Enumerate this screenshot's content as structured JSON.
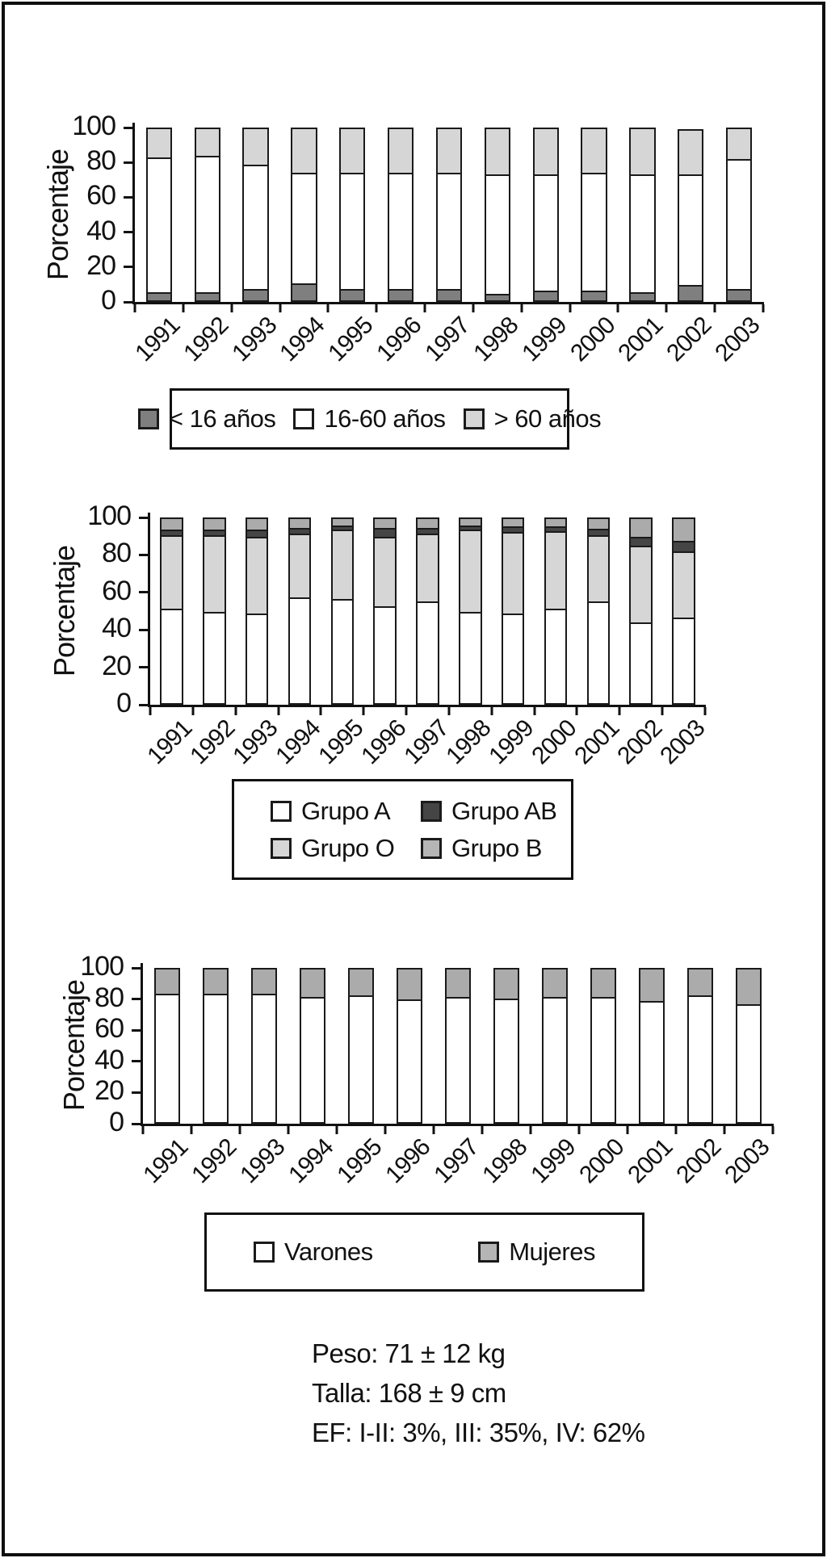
{
  "chart_data": [
    {
      "type": "bar",
      "stacked": true,
      "ylabel": "Porcentaje",
      "ylim": [
        0,
        100
      ],
      "yticks": [
        0,
        20,
        40,
        60,
        80,
        100
      ],
      "categories": [
        "1991",
        "1992",
        "1993",
        "1994",
        "1995",
        "1996",
        "1997",
        "1998",
        "1999",
        "2000",
        "2001",
        "2002",
        "2003"
      ],
      "series": [
        {
          "name": "< 16 años",
          "color": "#7f7f7f",
          "values": [
            4,
            4,
            6,
            9,
            6,
            6,
            6,
            3,
            5,
            5,
            4,
            8,
            6
          ]
        },
        {
          "name": "16-60 años",
          "color": "#ffffff",
          "values": [
            79,
            80,
            73,
            65,
            68,
            68,
            68,
            70,
            68,
            69,
            69,
            65,
            76
          ]
        },
        {
          "name": "> 60 años",
          "color": "#d6d6d6",
          "values": [
            17,
            16,
            21,
            26,
            26,
            26,
            26,
            27,
            27,
            26,
            27,
            26,
            18
          ]
        }
      ],
      "legend_items": [
        {
          "name": "< 16 años",
          "color": "#7f7f7f"
        },
        {
          "name": "16-60 años",
          "color": "#ffffff"
        },
        {
          "name": "> 60 años",
          "color": "#d6d6d6"
        }
      ],
      "legend_position": "below"
    },
    {
      "type": "bar",
      "stacked": true,
      "ylabel": "Porcentaje",
      "ylim": [
        0,
        100
      ],
      "yticks": [
        0,
        20,
        40,
        60,
        80,
        100
      ],
      "categories": [
        "1991",
        "1992",
        "1993",
        "1994",
        "1995",
        "1996",
        "1997",
        "1998",
        "1999",
        "2000",
        "2001",
        "2002",
        "2003"
      ],
      "series": [
        {
          "name": "Grupo A",
          "color": "#ffffff",
          "values": [
            52,
            50,
            49,
            58,
            57,
            53,
            56,
            50,
            49,
            52,
            56,
            44,
            47
          ]
        },
        {
          "name": "Grupo O",
          "color": "#d6d6d6",
          "values": [
            40,
            42,
            42,
            35,
            38,
            38,
            37,
            45,
            44.5,
            42,
            36,
            42,
            36
          ]
        },
        {
          "name": "Grupo AB",
          "color": "#454545",
          "values": [
            2,
            2,
            3,
            2,
            1.5,
            4,
            2,
            1.5,
            2.5,
            2,
            2.5,
            4,
            5
          ]
        },
        {
          "name": "Grupo B",
          "color": "#ababab",
          "values": [
            6,
            6,
            6,
            5,
            3.5,
            5,
            5,
            3.5,
            4,
            4,
            5.5,
            10,
            12
          ]
        }
      ],
      "legend_items": [
        {
          "name": "Grupo A",
          "color": "#ffffff"
        },
        {
          "name": "Grupo AB",
          "color": "#454545"
        },
        {
          "name": "Grupo O",
          "color": "#d6d6d6"
        },
        {
          "name": "Grupo B",
          "color": "#b5b5b5"
        }
      ],
      "legend_position": "below"
    },
    {
      "type": "bar",
      "stacked": true,
      "ylabel": "Porcentaje",
      "ylim": [
        0,
        100
      ],
      "yticks": [
        0,
        20,
        40,
        60,
        80,
        100
      ],
      "categories": [
        "1991",
        "1992",
        "1993",
        "1994",
        "1995",
        "1996",
        "1997",
        "1998",
        "1999",
        "2000",
        "2001",
        "2002",
        "2003"
      ],
      "series": [
        {
          "name": "Varones",
          "color": "#ffffff",
          "values": [
            84,
            84,
            84,
            82,
            83,
            80,
            82,
            81,
            82,
            82,
            79,
            83,
            77
          ]
        },
        {
          "name": "Mujeres",
          "color": "#ababab",
          "values": [
            16,
            16,
            16,
            18,
            17,
            20,
            18,
            19,
            18,
            18,
            21,
            17,
            23
          ]
        }
      ],
      "legend_items": [
        {
          "name": "Varones",
          "color": "#ffffff"
        },
        {
          "name": "Mujeres",
          "color": "#b5b5b5"
        }
      ],
      "legend_position": "below"
    }
  ],
  "footnote": {
    "lines": [
      "Peso: 71 ± 12 kg",
      "Talla: 168 ± 9 cm",
      "EF: I-II: 3%, III: 35%, IV: 62%"
    ]
  }
}
